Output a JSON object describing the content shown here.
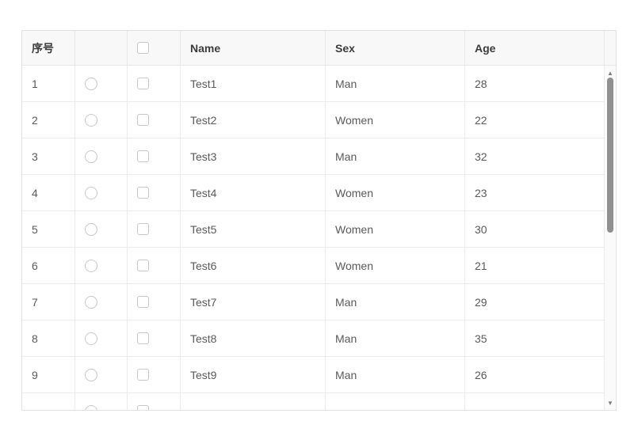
{
  "table": {
    "header": {
      "index_label": "序号",
      "radio_label": "",
      "name_label": "Name",
      "sex_label": "Sex",
      "age_label": "Age"
    },
    "select_all_checked": false,
    "rows": [
      {
        "index": "1",
        "name": "Test1",
        "sex": "Man",
        "age": "28",
        "radio_checked": false,
        "checkbox_checked": false
      },
      {
        "index": "2",
        "name": "Test2",
        "sex": "Women",
        "age": "22",
        "radio_checked": false,
        "checkbox_checked": false
      },
      {
        "index": "3",
        "name": "Test3",
        "sex": "Man",
        "age": "32",
        "radio_checked": false,
        "checkbox_checked": false
      },
      {
        "index": "4",
        "name": "Test4",
        "sex": "Women",
        "age": "23",
        "radio_checked": false,
        "checkbox_checked": false
      },
      {
        "index": "5",
        "name": "Test5",
        "sex": "Women",
        "age": "30",
        "radio_checked": false,
        "checkbox_checked": false
      },
      {
        "index": "6",
        "name": "Test6",
        "sex": "Women",
        "age": "21",
        "radio_checked": false,
        "checkbox_checked": false
      },
      {
        "index": "7",
        "name": "Test7",
        "sex": "Man",
        "age": "29",
        "radio_checked": false,
        "checkbox_checked": false
      },
      {
        "index": "8",
        "name": "Test8",
        "sex": "Man",
        "age": "35",
        "radio_checked": false,
        "checkbox_checked": false
      },
      {
        "index": "9",
        "name": "Test9",
        "sex": "Man",
        "age": "26",
        "radio_checked": false,
        "checkbox_checked": false
      },
      {
        "index": "",
        "name": "",
        "sex": "",
        "age": "",
        "radio_checked": false,
        "checkbox_checked": false,
        "partial": true
      }
    ]
  },
  "scrollbar": {
    "up_icon": "▲",
    "down_icon": "▼"
  },
  "colors": {
    "header_bg": "#f8f8f8",
    "border": "#e7e7e7",
    "header_text": "#3c3c3c",
    "body_text": "#5a5a5a",
    "control_border": "#c8c8c8",
    "scrollbar_thumb": "#909090",
    "scrollbar_arrow": "#7e7e7e"
  }
}
